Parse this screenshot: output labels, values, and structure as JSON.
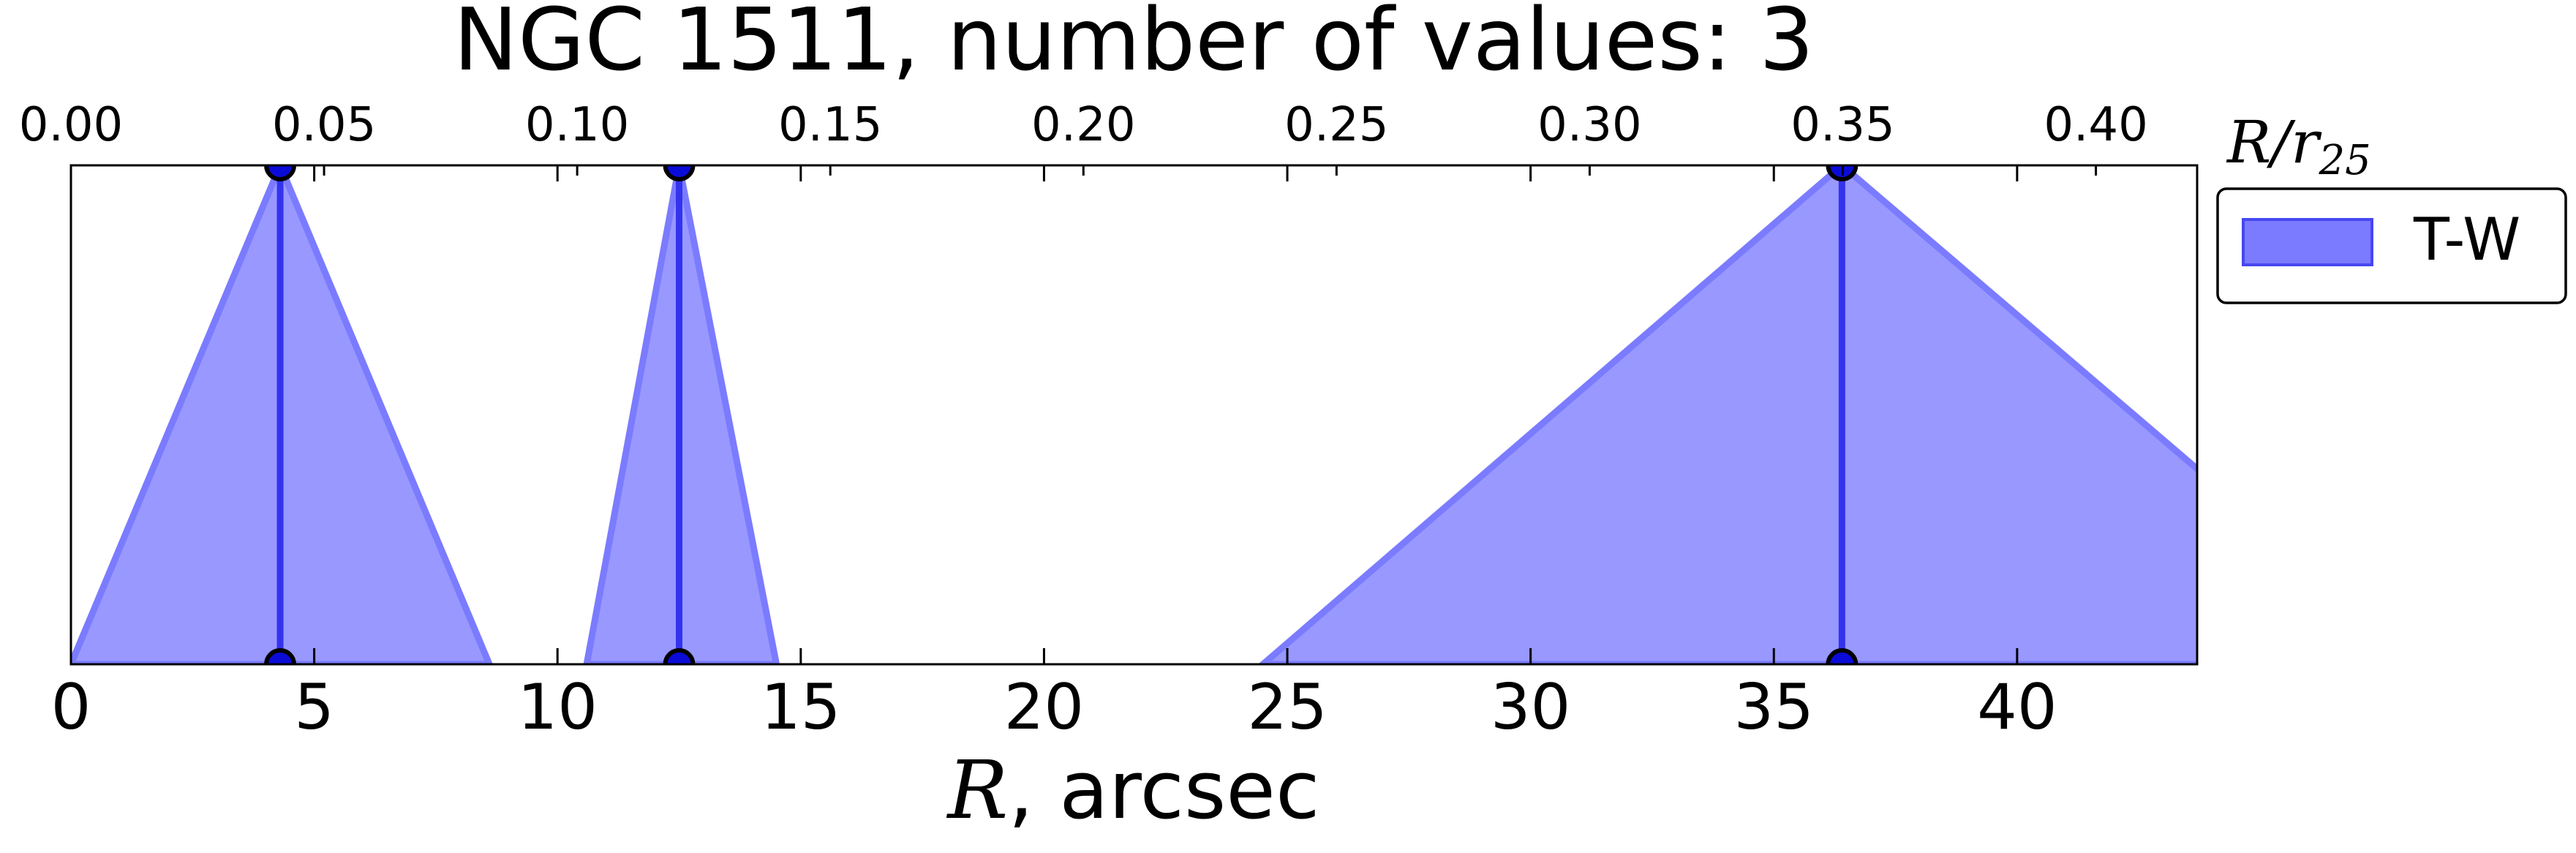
{
  "chart_data": {
    "type": "area",
    "title": "NGC 1511, number of values: 3",
    "xlabel_var": "R",
    "xlabel_unit": ", arcsec",
    "x2label_main": "R/r",
    "x2label_sub": "25",
    "xlim": [
      0,
      43.7
    ],
    "ylim": [
      0,
      1
    ],
    "x_ticks": [
      0,
      5,
      10,
      15,
      20,
      25,
      30,
      35,
      40
    ],
    "x_tick_labels": [
      "0",
      "5",
      "10",
      "15",
      "20",
      "25",
      "30",
      "35",
      "40"
    ],
    "x2_lim": [
      0,
      0.42
    ],
    "x2_ticks": [
      0.0,
      0.05,
      0.1,
      0.15,
      0.2,
      0.25,
      0.3,
      0.35,
      0.4
    ],
    "x2_tick_labels": [
      "0.00",
      "0.05",
      "0.10",
      "0.15",
      "0.20",
      "0.25",
      "0.30",
      "0.35",
      "0.40"
    ],
    "grid": false,
    "legend": {
      "placement": "outside-top-right",
      "entries": [
        "T-W"
      ]
    },
    "series": [
      {
        "name": "T-W",
        "color": "#7b7bff",
        "line_color": "#3333ee",
        "triangles": [
          {
            "center": 4.3,
            "left": 0.0,
            "right": 8.6
          },
          {
            "center": 12.5,
            "left": 10.6,
            "right": 14.5
          },
          {
            "center": 36.4,
            "left": 24.5,
            "right": 48.4
          }
        ]
      }
    ]
  }
}
